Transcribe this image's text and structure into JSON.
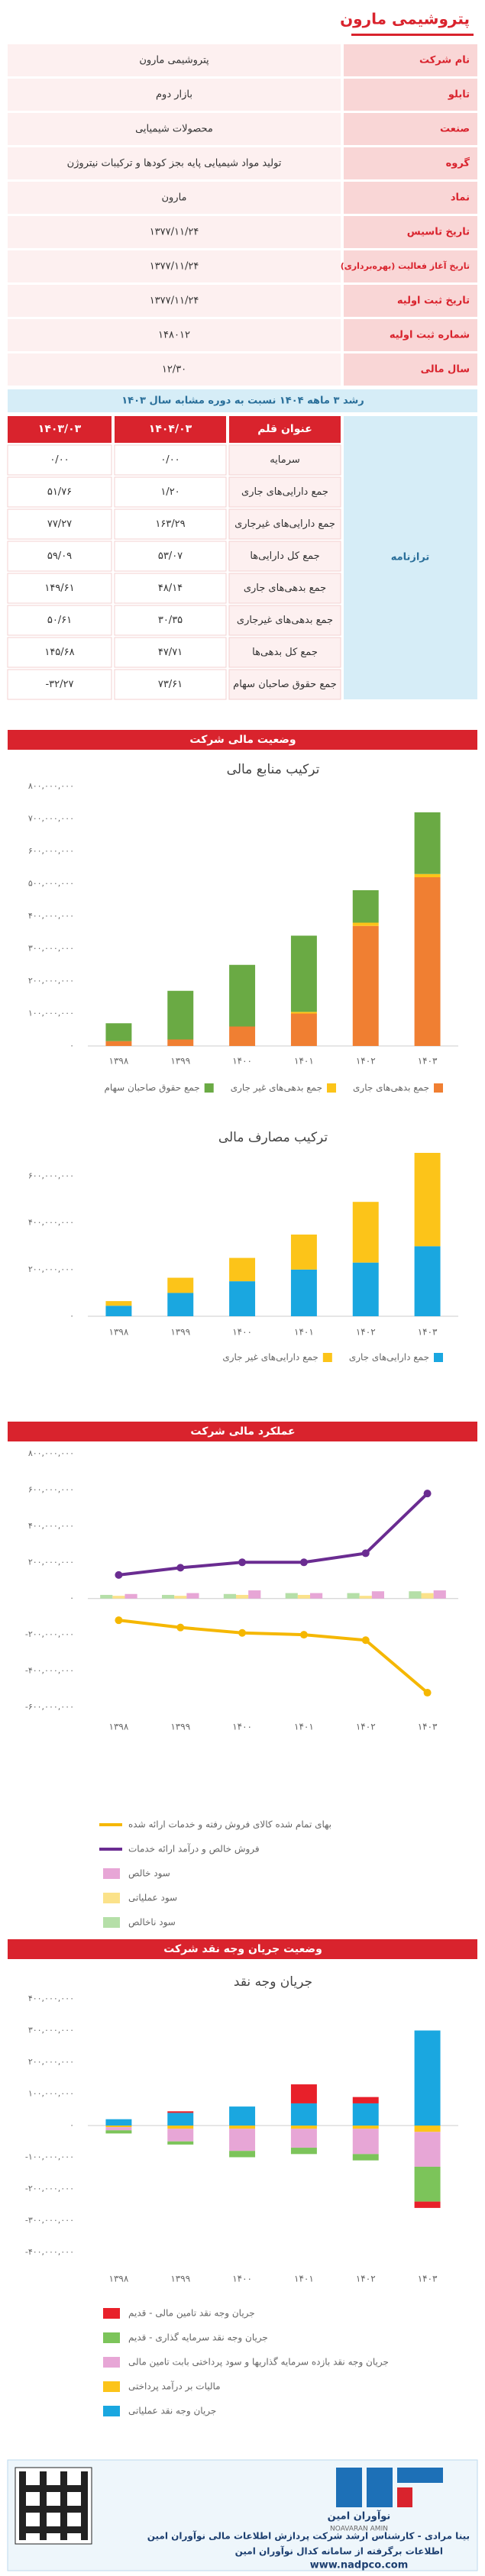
{
  "header": {
    "title": "پتروشیمی مارون"
  },
  "info_table": {
    "rows": [
      [
        "نام شرکت",
        "پتروشیمی مارون"
      ],
      [
        "تابلو",
        "بازار دوم"
      ],
      [
        "صنعت",
        "محصولات شیمیایی"
      ],
      [
        "گروه",
        "تولید مواد شیمیایی پایه بجز کودها و ترکیبات نیتروژن"
      ],
      [
        "نماد",
        "مارون"
      ],
      [
        "تاریخ تاسیس",
        "۱۳۷۷/۱۱/۲۴"
      ],
      [
        "تاریخ آغاز فعالیت (بهره‌برداری)",
        "۱۳۷۷/۱۱/۲۴"
      ],
      [
        "تاریخ ثبت اولیه",
        "۱۳۷۷/۱۱/۲۴"
      ],
      [
        "شماره ثبت اولیه",
        "۱۴۸۰۱۲"
      ],
      [
        "سال مالی",
        "۱۲/۳۰"
      ]
    ]
  },
  "growth_caption": "رشد ۳ ماهه ۱۴۰۴ نسبت به دوره مشابه سال ۱۴۰۳",
  "balance_table": {
    "group": "ترازنامه",
    "header": [
      "عنوان قلم",
      "۱۴۰۴/۰۳",
      "۱۴۰۳/۰۳"
    ],
    "rows": [
      [
        "سرمایه",
        "۰/۰۰",
        "۰/۰۰"
      ],
      [
        "جمع دارایی‌های جاری",
        "۱/۲۰",
        "۵۱/۷۶"
      ],
      [
        "جمع دارایی‌های غیرجاری",
        "۱۶۳/۲۹",
        "۷۷/۲۷"
      ],
      [
        "جمع کل دارایی‌ها",
        "۵۳/۰۷",
        "۵۹/۰۹"
      ],
      [
        "جمع بدهی‌های جاری",
        "۴۸/۱۴",
        "۱۴۹/۶۱"
      ],
      [
        "جمع بدهی‌های غیرجاری",
        "۳۰/۳۵",
        "۵۰/۶۱"
      ],
      [
        "جمع کل بدهی‌ها",
        "۴۷/۷۱",
        "۱۴۵/۶۸"
      ],
      [
        "جمع حقوق صاحبان سهام",
        "۷۳/۶۱",
        "-۳۲/۲۷"
      ]
    ]
  },
  "sections": [
    "وضعیت مالی شرکت",
    "عملکرد مالی شرکت",
    "وضعیت جریان وجه نقد شرکت"
  ],
  "chart_data": [
    {
      "type": "stacked_bar",
      "title": "ترکیب منابع مالی",
      "categories": [
        "۱۳۹۸",
        "۱۳۹۹",
        "۱۴۰۰",
        "۱۴۰۱",
        "۱۴۰۲",
        "۱۴۰۳"
      ],
      "series": [
        {
          "name": "جمع بدهی‌های جاری",
          "color": "#f07f32",
          "values": [
            15000000,
            20000000,
            60000000,
            100000000,
            370000000,
            520000000
          ]
        },
        {
          "name": "جمع بدهی‌های غیر جاری",
          "color": "#fcc419",
          "values": [
            0,
            0,
            0,
            5000000,
            10000000,
            10000000
          ]
        },
        {
          "name": "جمع حقوق صاحبان سهام",
          "color": "#6aaa44",
          "values": [
            55000000,
            150000000,
            190000000,
            235000000,
            100000000,
            190000000
          ]
        }
      ],
      "ylim": [
        0,
        800000000
      ],
      "yticks": [
        {
          "value": 0,
          "label": "۰"
        },
        {
          "value": 100000000,
          "label": "۱۰۰,۰۰۰,۰۰۰"
        },
        {
          "value": 200000000,
          "label": "۲۰۰,۰۰۰,۰۰۰"
        },
        {
          "value": 300000000,
          "label": "۳۰۰,۰۰۰,۰۰۰"
        },
        {
          "value": 400000000,
          "label": "۴۰۰,۰۰۰,۰۰۰"
        },
        {
          "value": 500000000,
          "label": "۵۰۰,۰۰۰,۰۰۰"
        },
        {
          "value": 600000000,
          "label": "۶۰۰,۰۰۰,۰۰۰"
        },
        {
          "value": 700000000,
          "label": "۷۰۰,۰۰۰,۰۰۰"
        },
        {
          "value": 800000000,
          "label": "۸۰۰,۰۰۰,۰۰۰"
        }
      ],
      "grid": false
    },
    {
      "type": "stacked_bar",
      "title": "ترکیب مصارف مالی",
      "categories": [
        "۱۳۹۸",
        "۱۳۹۹",
        "۱۴۰۰",
        "۱۴۰۱",
        "۱۴۰۲",
        "۱۴۰۳"
      ],
      "series": [
        {
          "name": "جمع دارایی‌های جاری",
          "color": "#1aa7e0",
          "values": [
            45000000,
            100000000,
            150000000,
            200000000,
            230000000,
            300000000
          ]
        },
        {
          "name": "جمع دارایی‌های غیر جاری",
          "color": "#fcc419",
          "values": [
            20000000,
            65000000,
            100000000,
            150000000,
            260000000,
            400000000
          ]
        }
      ],
      "ylim": [
        0,
        700000000
      ],
      "yticks": [
        {
          "value": 0,
          "label": "۰"
        },
        {
          "value": 200000000,
          "label": "۲۰۰,۰۰۰,۰۰۰"
        },
        {
          "value": 400000000,
          "label": "۴۰۰,۰۰۰,۰۰۰"
        },
        {
          "value": 600000000,
          "label": "۶۰۰,۰۰۰,۰۰۰"
        }
      ],
      "grid": false
    },
    {
      "type": "combo",
      "categories": [
        "۱۳۹۸",
        "۱۳۹۹",
        "۱۴۰۰",
        "۱۴۰۱",
        "۱۴۰۲",
        "۱۴۰۳"
      ],
      "series": [
        {
          "name": "سود ناخالص",
          "kind": "bar",
          "color": "#b5dfa8",
          "values": [
            20000000,
            20000000,
            25000000,
            30000000,
            30000000,
            40000000
          ]
        },
        {
          "name": "سود عملیاتی",
          "kind": "bar",
          "color": "#fbe28a",
          "values": [
            15000000,
            15000000,
            20000000,
            20000000,
            15000000,
            30000000
          ]
        },
        {
          "name": "سود خالص",
          "kind": "bar",
          "color": "#e7a6d6",
          "values": [
            25000000,
            30000000,
            45000000,
            30000000,
            40000000,
            45000000
          ]
        },
        {
          "name": "فروش خالص و درآمد ارائه خدمات",
          "kind": "line",
          "color": "#6a2c91",
          "values": [
            130000000,
            170000000,
            200000000,
            200000000,
            250000000,
            580000000
          ]
        },
        {
          "name": "بهای تمام شده کالای فروش رفته و خدمات ارائه شده",
          "kind": "line",
          "color": "#f5b700",
          "values": [
            -120000000,
            -160000000,
            -190000000,
            -200000000,
            -230000000,
            -520000000
          ]
        }
      ],
      "ylim": [
        -600000000,
        800000000
      ],
      "yticks": [
        {
          "value": -600000000,
          "label": "-۶۰۰,۰۰۰,۰۰۰"
        },
        {
          "value": -400000000,
          "label": "-۴۰۰,۰۰۰,۰۰۰"
        },
        {
          "value": -200000000,
          "label": "-۲۰۰,۰۰۰,۰۰۰"
        },
        {
          "value": 0,
          "label": "۰"
        },
        {
          "value": 200000000,
          "label": "۲۰۰,۰۰۰,۰۰۰"
        },
        {
          "value": 400000000,
          "label": "۴۰۰,۰۰۰,۰۰۰"
        },
        {
          "value": 600000000,
          "label": "۶۰۰,۰۰۰,۰۰۰"
        },
        {
          "value": 800000000,
          "label": "۸۰۰,۰۰۰,۰۰۰"
        }
      ],
      "grid": false
    },
    {
      "type": "stacked_bar",
      "title": "جریان وجه نقد",
      "categories": [
        "۱۳۹۸",
        "۱۳۹۹",
        "۱۴۰۰",
        "۱۴۰۱",
        "۱۴۰۲",
        "۱۴۰۳"
      ],
      "series": [
        {
          "name": "جریان وجه نقد عملیاتی",
          "color": "#1aa7e0",
          "values": [
            20000000,
            40000000,
            60000000,
            70000000,
            70000000,
            300000000
          ]
        },
        {
          "name": "مالیات بر درآمد پرداختی",
          "color": "#fcc419",
          "values": [
            -5000000,
            -10000000,
            -10000000,
            -10000000,
            -10000000,
            -20000000
          ]
        },
        {
          "name": "جریان وجه نقد بازده سرمایه گذاریها و سود پرداختی بابت تامین مالی",
          "color": "#e7a6d6",
          "values": [
            -10000000,
            -40000000,
            -70000000,
            -60000000,
            -80000000,
            -110000000
          ]
        },
        {
          "name": "جریان وجه نقد سرمایه گذاری - قدیم",
          "color": "#7cc45a",
          "values": [
            -10000000,
            -10000000,
            -20000000,
            -20000000,
            -20000000,
            -110000000
          ]
        },
        {
          "name": "جریان وجه نقد تامین مالی - قدیم",
          "color": "#e8202a",
          "values": [
            0,
            5000000,
            0,
            60000000,
            20000000,
            -20000000
          ]
        }
      ],
      "ylim": [
        -400000000,
        400000000
      ],
      "yticks": [
        {
          "value": -400000000,
          "label": "-۴۰۰,۰۰۰,۰۰۰"
        },
        {
          "value": -300000000,
          "label": "-۳۰۰,۰۰۰,۰۰۰"
        },
        {
          "value": -200000000,
          "label": "-۲۰۰,۰۰۰,۰۰۰"
        },
        {
          "value": -100000000,
          "label": "-۱۰۰,۰۰۰,۰۰۰"
        },
        {
          "value": 0,
          "label": "۰"
        },
        {
          "value": 100000000,
          "label": "۱۰۰,۰۰۰,۰۰۰"
        },
        {
          "value": 200000000,
          "label": "۲۰۰,۰۰۰,۰۰۰"
        },
        {
          "value": 300000000,
          "label": "۳۰۰,۰۰۰,۰۰۰"
        },
        {
          "value": 400000000,
          "label": "۴۰۰,۰۰۰,۰۰۰"
        }
      ],
      "grid": false
    }
  ],
  "footer": {
    "brand_fa": "نوآوران امین",
    "brand_en": "NOAVARAN AMIN",
    "author": "بینا مرادی - کارشناس ارشد شرکت پردازش اطلاعات مالی نوآوران امین",
    "source": "اطلاعات برگرفته از سامانه کدال نوآوران امین",
    "url": "www.nadpco.com"
  }
}
